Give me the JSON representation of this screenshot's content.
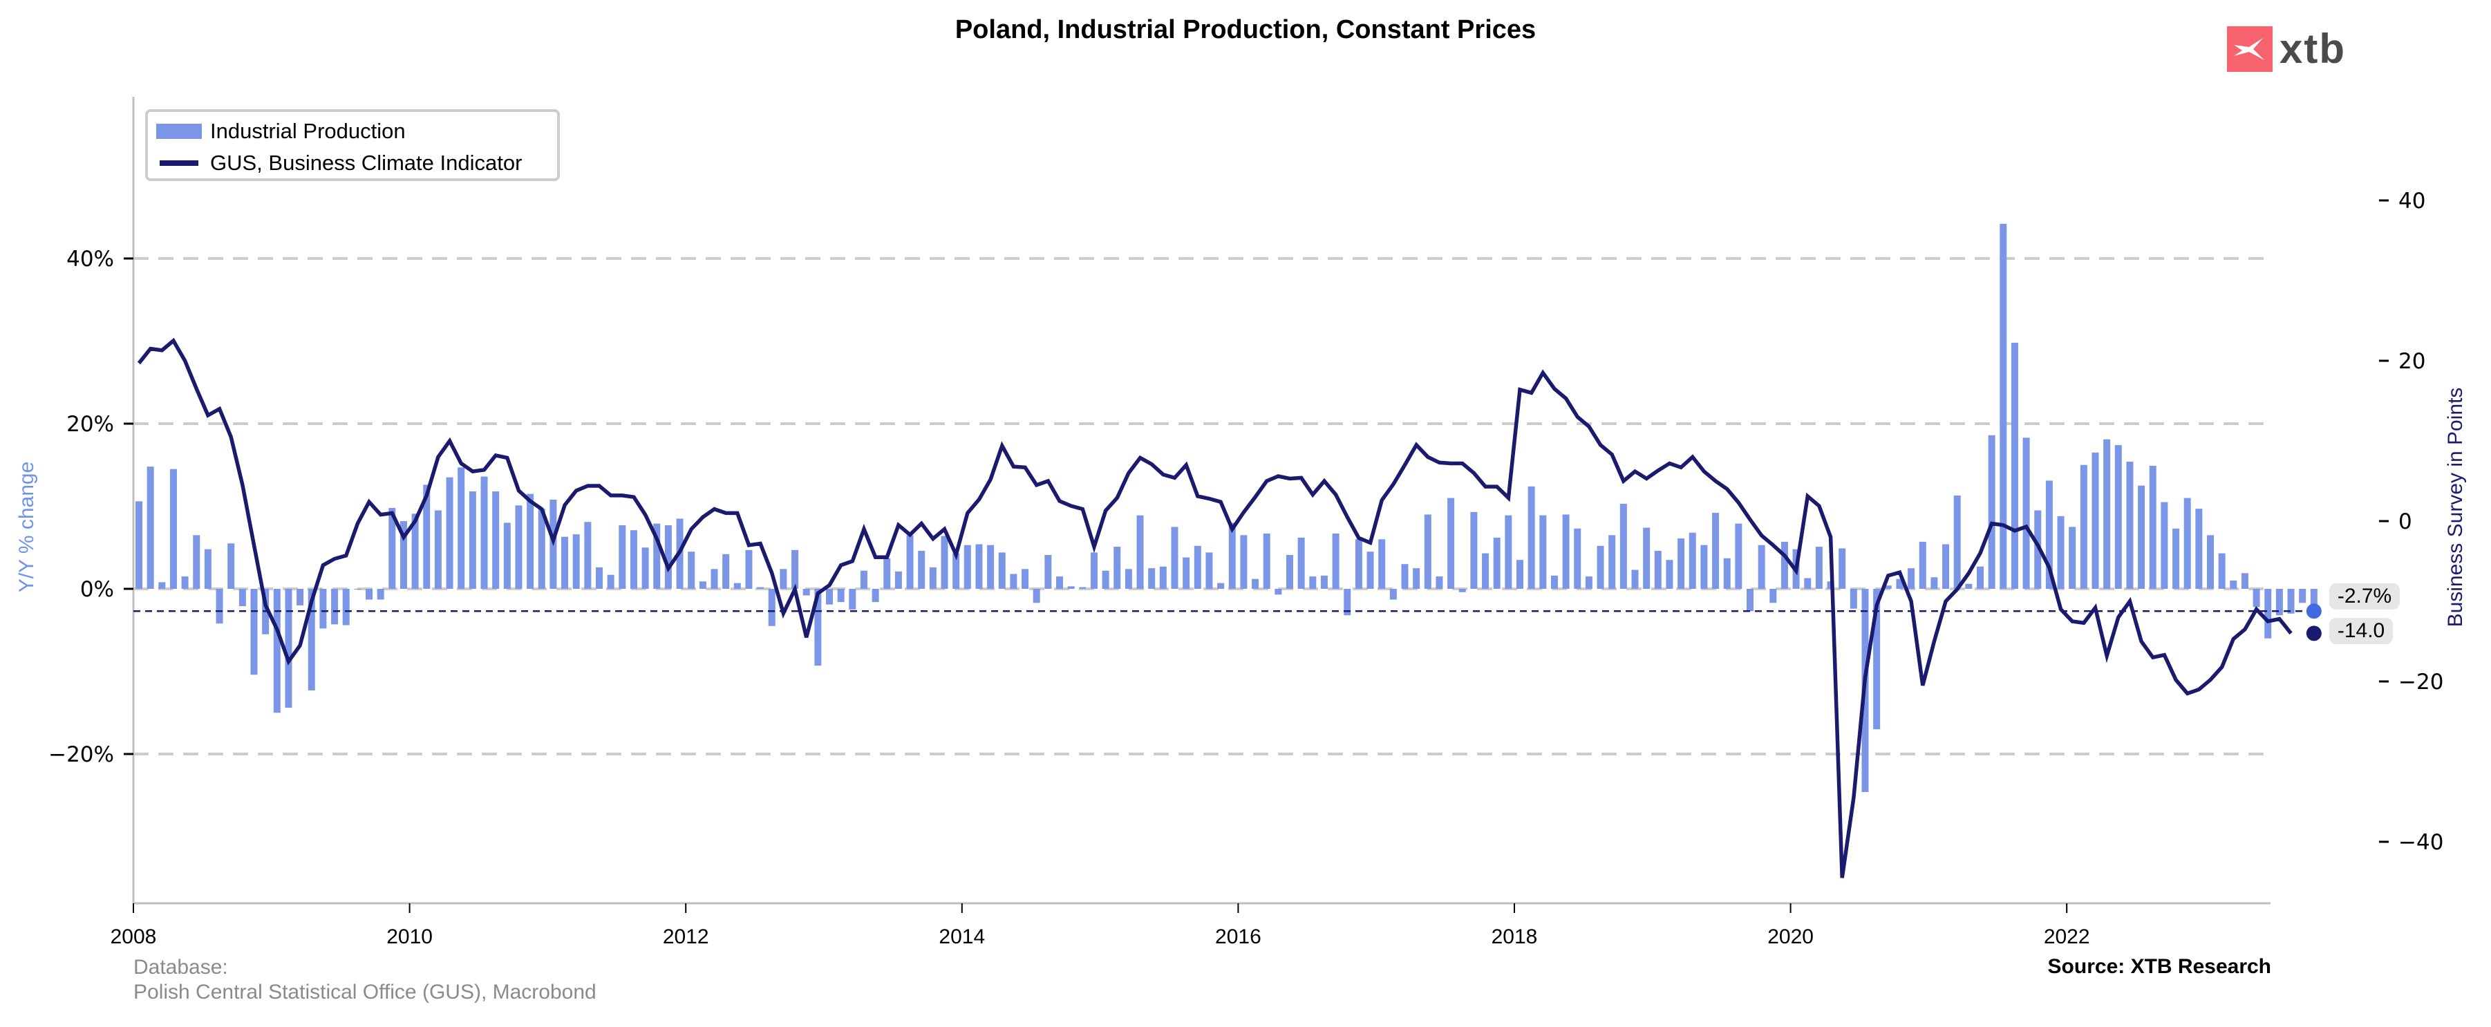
{
  "chart_data": {
    "type": "bar+line",
    "title": "Poland, Industrial Production, Constant Prices",
    "x_start": "2008-01",
    "x_end": "2023-06",
    "frequency": "monthly",
    "x_ticks": [
      "2008",
      "2010",
      "2012",
      "2014",
      "2016",
      "2018",
      "2020",
      "2022"
    ],
    "left_axis": {
      "label": "Y/Y % change",
      "ticks": [
        "40%",
        "20%",
        "0%",
        "−20%"
      ],
      "tick_values": [
        40,
        20,
        0,
        -20
      ],
      "range": [
        -38,
        60
      ]
    },
    "right_axis": {
      "label": "Business Survey in Points",
      "ticks": [
        "40",
        "20",
        "0",
        "−20",
        "−40"
      ],
      "tick_values": [
        40,
        20,
        0,
        -20,
        -40
      ],
      "range": [
        -48.5,
        36
      ]
    },
    "grid": "horizontal dashed at left-axis ticks",
    "legend_position": "top-left",
    "series": [
      {
        "name": "Industrial Production",
        "type": "bar",
        "axis": "left",
        "color": "#7b96e6",
        "values": [
          10.6,
          14.8,
          0.8,
          14.5,
          1.5,
          6.5,
          4.8,
          -4.2,
          5.5,
          -2.1,
          -10.4,
          -5.5,
          -15.0,
          -14.4,
          -2.0,
          -12.3,
          -4.8,
          -4.3,
          -4.4,
          0.0,
          -1.3,
          -1.3,
          9.8,
          8.2,
          9.1,
          12.6,
          9.5,
          13.5,
          14.7,
          11.8,
          13.6,
          11.8,
          8.0,
          10.1,
          11.5,
          9.7,
          10.8,
          6.3,
          6.6,
          8.1,
          2.6,
          1.7,
          7.7,
          7.1,
          5.0,
          7.9,
          7.7,
          8.5,
          4.5,
          0.9,
          2.4,
          4.2,
          0.7,
          4.7,
          0.2,
          -4.5,
          2.4,
          4.7,
          -0.8,
          -9.3,
          -1.9,
          -1.6,
          -2.5,
          2.2,
          -1.6,
          3.7,
          2.1,
          6.5,
          4.6,
          2.6,
          6.4,
          4.3,
          5.3,
          5.4,
          5.3,
          4.4,
          1.8,
          2.4,
          -1.7,
          4.1,
          1.5,
          0.3,
          0.2,
          4.4,
          2.2,
          5.1,
          2.4,
          8.9,
          2.5,
          2.7,
          7.5,
          3.8,
          5.2,
          4.4,
          0.7,
          8.0,
          6.5,
          1.2,
          6.7,
          -0.7,
          4.1,
          6.2,
          1.5,
          1.6,
          6.7,
          -3.2,
          6.0,
          4.5,
          6.0,
          -1.3,
          3.0,
          2.5,
          9.0,
          1.5,
          11.0,
          -0.4,
          9.3,
          4.3,
          6.2,
          8.9,
          3.5,
          12.4,
          8.9,
          1.6,
          9.0,
          7.3,
          1.5,
          5.2,
          6.5,
          10.3,
          2.3,
          7.4,
          4.6,
          3.5,
          6.1,
          6.8,
          5.3,
          9.2,
          3.7,
          7.9,
          -2.7,
          5.3,
          -1.7,
          5.7,
          4.8,
          1.3,
          5.1,
          0.9,
          4.9,
          -2.4,
          -24.6,
          -17.0,
          0.4,
          1.2,
          2.5,
          5.7,
          1.4,
          5.4,
          11.3,
          0.6,
          2.7,
          18.6,
          44.2,
          29.8,
          18.3,
          9.5,
          13.1,
          8.8,
          7.5,
          15.0,
          16.5,
          18.1,
          17.4,
          15.4,
          12.5,
          14.9,
          10.5,
          7.3,
          11.0,
          9.7,
          6.5,
          4.3,
          1.0,
          1.9,
          -2.2,
          -6.0,
          -3.2,
          -3.0,
          -1.7,
          -2.7
        ]
      },
      {
        "name": "GUS, Business Climate Indicator",
        "type": "line",
        "axis": "right",
        "color": "#1a1a6e",
        "values": [
          19.7,
          21.5,
          21.3,
          22.5,
          20.0,
          16.5,
          13.2,
          14.0,
          10.5,
          4.5,
          -3.0,
          -10.5,
          -13.5,
          -17.5,
          -15.5,
          -10.0,
          -5.5,
          -4.7,
          -4.3,
          -0.3,
          2.4,
          0.8,
          1.0,
          -2.0,
          0.0,
          3.2,
          8.0,
          10.0,
          7.2,
          6.2,
          6.4,
          8.2,
          7.9,
          3.8,
          2.5,
          1.5,
          -2.4,
          2.0,
          3.8,
          4.4,
          4.4,
          3.2,
          3.2,
          3.0,
          0.8,
          -2.2,
          -5.9,
          -3.8,
          -1.0,
          0.5,
          1.5,
          1.0,
          1.0,
          -3.0,
          -2.8,
          -6.5,
          -11.5,
          -8.5,
          -14.5,
          -9.0,
          -8.0,
          -5.5,
          -5.0,
          -1.0,
          -4.5,
          -4.5,
          -0.5,
          -1.7,
          -0.3,
          -2.2,
          -1.0,
          -4.2,
          1.0,
          2.7,
          5.2,
          9.4,
          6.8,
          6.7,
          4.5,
          5.0,
          2.5,
          1.9,
          1.5,
          -3.2,
          1.3,
          2.9,
          6.0,
          7.9,
          7.1,
          5.8,
          5.4,
          7.0,
          3.1,
          2.8,
          2.4,
          -1.0,
          1.1,
          3.0,
          5.0,
          5.6,
          5.3,
          5.4,
          3.3,
          5.0,
          3.3,
          0.5,
          -2.1,
          -2.7,
          2.6,
          4.6,
          7.0,
          9.5,
          8.0,
          7.3,
          7.2,
          7.2,
          6.0,
          4.3,
          4.3,
          2.9,
          16.4,
          16.0,
          18.5,
          16.5,
          15.3,
          13.0,
          11.8,
          9.5,
          8.3,
          5.0,
          6.2,
          5.3,
          6.3,
          7.2,
          6.7,
          8.0,
          6.2,
          5.0,
          4.0,
          2.3,
          0.2,
          -1.8,
          -3.0,
          -4.3,
          -6.2,
          3.1,
          1.9,
          -2.0,
          -44.5,
          -34.5,
          -19.5,
          -10.5,
          -6.8,
          -6.4,
          -10.0,
          -20.5,
          -15.0,
          -10.0,
          -8.5,
          -6.5,
          -4.0,
          -0.3,
          -0.5,
          -1.2,
          -0.7,
          -3.0,
          -5.8,
          -11.0,
          -12.5,
          -12.7,
          -10.8,
          -16.8,
          -12.0,
          -10.0,
          -15.0,
          -17.0,
          -16.7,
          -19.8,
          -21.5,
          -21.0,
          -19.8,
          -18.2,
          -14.7,
          -13.5,
          -11.0,
          -12.5,
          -12.2,
          -14.0
        ]
      }
    ],
    "reference_line": {
      "axis": "left",
      "value": -2.7,
      "style": "dashed",
      "color": "#1a1a6e"
    },
    "end_labels": [
      {
        "series": "Industrial Production",
        "text": "-2.7%",
        "value": -2.7,
        "marker_color": "#4169e1"
      },
      {
        "series": "GUS, Business Climate Indicator",
        "text": "-14.0",
        "value": -14.0,
        "marker_color": "#1a1a6e"
      }
    ]
  },
  "header": {
    "title": "Poland, Industrial Production, Constant Prices",
    "logo_text": "xtb"
  },
  "legend": {
    "items": [
      {
        "label": "Industrial Production"
      },
      {
        "label": "GUS, Business Climate Indicator"
      }
    ]
  },
  "footer": {
    "database_label": "Database:",
    "database_value": "Polish Central Statistical Office (GUS), Macrobond",
    "source": "Source: XTB Research"
  }
}
